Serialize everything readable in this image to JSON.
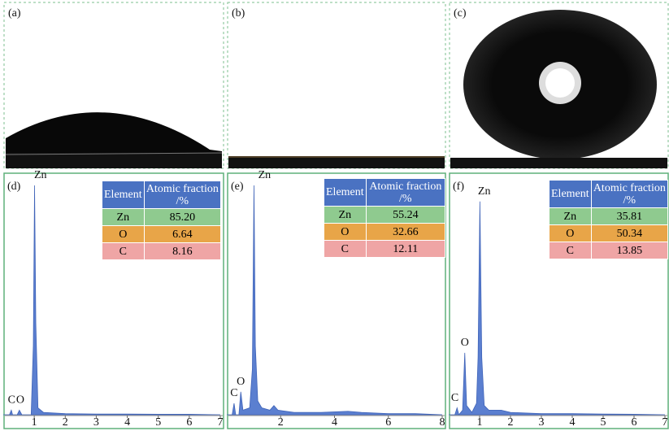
{
  "images": [
    {
      "label": "(a)"
    },
    {
      "label": "(b)"
    },
    {
      "label": "(c)"
    }
  ],
  "chart_data": [
    {
      "type": "area",
      "label": "(d)",
      "color": "#5b7fd0",
      "xlim": [
        0,
        7
      ],
      "xticks": [
        1,
        2,
        3,
        4,
        5,
        6,
        7
      ],
      "ylim": [
        0,
        100
      ],
      "x": [
        0,
        0.2,
        0.26,
        0.3,
        0.45,
        0.52,
        0.6,
        0.9,
        0.97,
        1.01,
        1.05,
        1.12,
        1.3,
        2,
        3,
        4,
        5,
        6,
        7
      ],
      "values": [
        0,
        0,
        2,
        0,
        0,
        2,
        0,
        0,
        30,
        100,
        40,
        3,
        1,
        0.5,
        0.3,
        0.3,
        0.2,
        0.2,
        0
      ],
      "annotations": [
        {
          "text": "C",
          "x": 0.27,
          "y": 2
        },
        {
          "text": "O",
          "x": 0.55,
          "y": 2
        },
        {
          "text": "Zn",
          "x": 1.2,
          "y": 100
        }
      ],
      "table": {
        "header": [
          "Element",
          "Atomic fraction /%"
        ],
        "rows": [
          [
            "Zn",
            "85.20"
          ],
          [
            "O",
            "6.64"
          ],
          [
            "C",
            "8.16"
          ]
        ]
      }
    },
    {
      "type": "area",
      "label": "(e)",
      "color": "#5b7fd0",
      "xlim": [
        0,
        8
      ],
      "xticks": [
        2,
        4,
        6,
        8
      ],
      "ylim": [
        0,
        100
      ],
      "x": [
        0,
        0.2,
        0.27,
        0.33,
        0.45,
        0.52,
        0.6,
        0.85,
        0.95,
        1.01,
        1.06,
        1.15,
        1.3,
        1.6,
        1.75,
        1.9,
        2.5,
        3.5,
        4.5,
        5,
        6,
        7,
        8
      ],
      "values": [
        0,
        0,
        5,
        0,
        0,
        10,
        2,
        3,
        20,
        100,
        30,
        6,
        3,
        2,
        4,
        2,
        1,
        1,
        1.5,
        1,
        0.5,
        0.5,
        0
      ],
      "annotations": [
        {
          "text": "C",
          "x": 0.27,
          "y": 5
        },
        {
          "text": "O",
          "x": 0.52,
          "y": 10
        },
        {
          "text": "Zn",
          "x": 1.4,
          "y": 100
        }
      ],
      "table": {
        "header": [
          "Element",
          "Atomic fraction /%"
        ],
        "rows": [
          [
            "Zn",
            "55.24"
          ],
          [
            "O",
            "32.66"
          ],
          [
            "C",
            "12.11"
          ]
        ]
      }
    },
    {
      "type": "area",
      "label": "(f)",
      "color": "#5b7fd0",
      "xlim": [
        0,
        7
      ],
      "xticks": [
        1,
        2,
        3,
        4,
        5,
        6,
        7
      ],
      "ylim": [
        0,
        100
      ],
      "x": [
        0,
        0.2,
        0.27,
        0.33,
        0.45,
        0.52,
        0.58,
        0.75,
        0.9,
        0.95,
        1.01,
        1.07,
        1.15,
        1.3,
        1.7,
        2,
        3,
        4,
        5,
        6,
        7
      ],
      "values": [
        0,
        0,
        3,
        0,
        2,
        27,
        4,
        1,
        5,
        25,
        93,
        25,
        4,
        2,
        2,
        1,
        0.5,
        0.5,
        0.3,
        0.2,
        0
      ],
      "annotations": [
        {
          "text": "C",
          "x": 0.2,
          "y": 3
        },
        {
          "text": "O",
          "x": 0.52,
          "y": 27
        },
        {
          "text": "Zn",
          "x": 1.15,
          "y": 93
        }
      ],
      "table": {
        "header": [
          "Element",
          "Atomic fraction /%"
        ],
        "rows": [
          [
            "Zn",
            "35.81"
          ],
          [
            "O",
            "50.34"
          ],
          [
            "C",
            "13.85"
          ]
        ]
      }
    }
  ]
}
